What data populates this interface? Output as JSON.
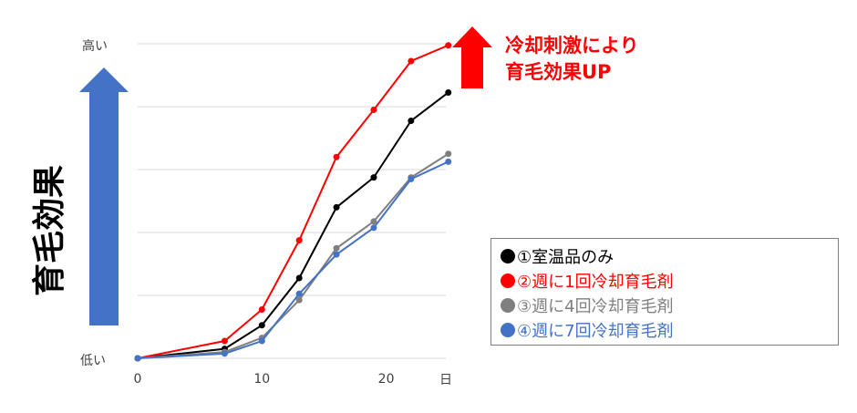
{
  "chart_data": {
    "type": "line",
    "ylabel": "育毛効果",
    "y_tick_labels": {
      "top": "高い",
      "bottom": "低い"
    },
    "x_ticks": [
      0,
      10,
      20
    ],
    "x_unit": "日",
    "xlim": [
      0,
      24.8
    ],
    "ylim": [
      0,
      100
    ],
    "grid": true,
    "legend_position": "right",
    "series": [
      {
        "name": "●①室温品のみ",
        "color": "#000000",
        "x": [
          0,
          7,
          10,
          13,
          16,
          19,
          22,
          25
        ],
        "y": [
          0,
          3,
          10.5,
          25.5,
          48,
          57.5,
          75.5,
          84.5
        ]
      },
      {
        "name": "●②週に1回冷却育毛剤",
        "color": "#ff0000",
        "x": [
          0,
          7,
          10,
          13,
          16,
          19,
          22,
          25
        ],
        "y": [
          0,
          5.5,
          15.5,
          37.5,
          64,
          79,
          94.5,
          99.5
        ]
      },
      {
        "name": "●③週に4回冷却育毛剤",
        "color": "#7f7f7f",
        "x": [
          0,
          7,
          10,
          13,
          16,
          19,
          22,
          25
        ],
        "y": [
          0,
          2,
          6.5,
          18.5,
          35,
          43.5,
          57.5,
          65
        ]
      },
      {
        "name": "●④週に7回冷却育毛剤",
        "color": "#4472c4",
        "x": [
          0,
          7,
          10,
          13,
          16,
          19,
          22,
          25
        ],
        "y": [
          0,
          1.5,
          5.5,
          20.5,
          33,
          41.5,
          57,
          62.5
        ]
      }
    ]
  },
  "callout": {
    "line1": "冷却刺激により",
    "line2": "育毛効果UP",
    "color": "#ff0000"
  },
  "arrows": {
    "effect_arrow_color": "#4472c4",
    "up_arrow_color": "#ff0000"
  }
}
